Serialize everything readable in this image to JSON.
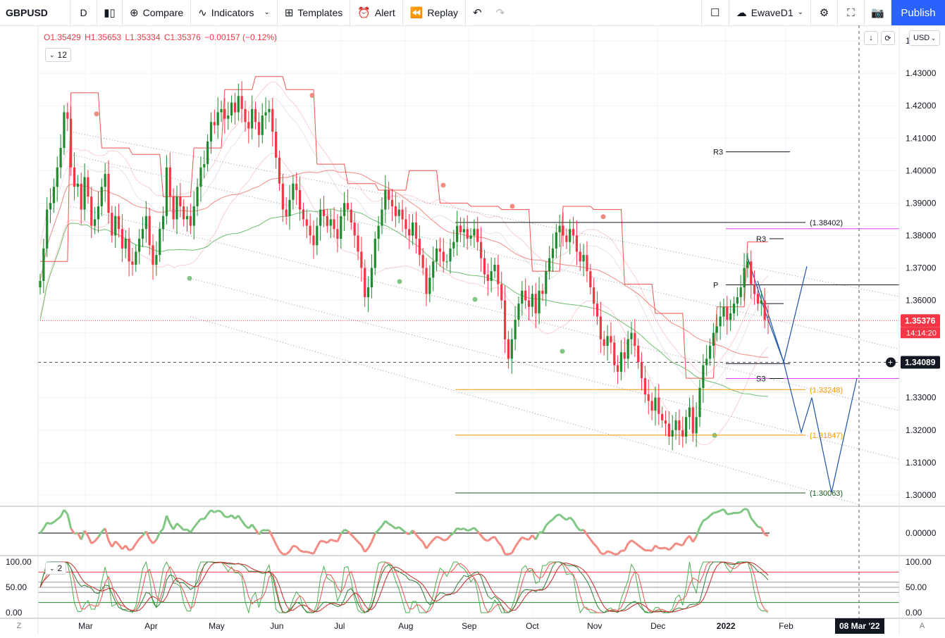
{
  "toolbar": {
    "symbol": "GBPUSD",
    "interval": "D",
    "compare": "Compare",
    "indicators": "Indicators",
    "templates": "Templates",
    "alert": "Alert",
    "replay": "Replay",
    "layout_name": "EwaveD1",
    "publish": "Publish"
  },
  "legend": {
    "open": "O1.35429",
    "high": "H1.35653",
    "low": "L1.35334",
    "close": "C1.35376",
    "change": "−0.00157 (−0.12%)"
  },
  "indicator_count": "12",
  "oscillator_count": "2",
  "currency": "USD",
  "axis_corner_left": "Z",
  "axis_corner_right": "A",
  "colors": {
    "up": "#089981",
    "down": "#f23645",
    "green_candle": "#1f8a2e",
    "accent": "#2962ff",
    "orange": "#ff9800",
    "magenta": "#e040fb"
  },
  "chart_data": {
    "type": "candlestick",
    "symbol": "GBPUSD",
    "timeframe": "D",
    "y_axis_ticks": [
      "1.44000",
      "1.43000",
      "1.42000",
      "1.41000",
      "1.40000",
      "1.39000",
      "1.38000",
      "1.37000",
      "1.36000",
      "1.35000",
      "1.34000",
      "1.33000",
      "1.32000",
      "1.31000",
      "1.30000"
    ],
    "ylim": [
      1.2965,
      1.4448
    ],
    "x_axis_labels": [
      "Mar",
      "Apr",
      "May",
      "Jun",
      "Jul",
      "Aug",
      "Sep",
      "Oct",
      "Nov",
      "Dec",
      "2022",
      "Feb"
    ],
    "crosshair_date_label": "08 Mar '22",
    "last_price_label": "1.35376",
    "countdown_label": "14:14:20",
    "crosshair_price_label": "1.34089",
    "levels": [
      {
        "label": "(1.38402)",
        "value": 1.38402,
        "color": "#131722"
      },
      {
        "label": "(1.33248)",
        "value": 1.33248,
        "color": "#ff9800"
      },
      {
        "label": "(1.31847)",
        "value": 1.31847,
        "color": "#ff9800"
      },
      {
        "label": "(1.30063)",
        "value": 1.30063,
        "color": "#1b5e20"
      }
    ],
    "pivot_labels": [
      {
        "label": "R3",
        "value": 1.4058
      },
      {
        "label": "R3",
        "value": 1.379
      },
      {
        "label": "P",
        "value": 1.3648
      },
      {
        "label": "S3",
        "value": 1.3359
      }
    ],
    "closes": [
      1.366,
      1.376,
      1.388,
      1.39,
      1.395,
      1.401,
      1.407,
      1.418,
      1.416,
      1.401,
      1.395,
      1.396,
      1.388,
      1.398,
      1.392,
      1.383,
      1.385,
      1.389,
      1.395,
      1.399,
      1.387,
      1.38,
      1.386,
      1.382,
      1.376,
      1.379,
      1.372,
      1.371,
      1.375,
      1.379,
      1.382,
      1.386,
      1.377,
      1.371,
      1.374,
      1.382,
      1.386,
      1.401,
      1.392,
      1.385,
      1.392,
      1.389,
      1.385,
      1.386,
      1.383,
      1.389,
      1.395,
      1.401,
      1.402,
      1.409,
      1.415,
      1.414,
      1.418,
      1.419,
      1.416,
      1.417,
      1.421,
      1.418,
      1.423,
      1.419,
      1.415,
      1.413,
      1.419,
      1.415,
      1.411,
      1.417,
      1.418,
      1.419,
      1.412,
      1.404,
      1.396,
      1.388,
      1.386,
      1.391,
      1.396,
      1.394,
      1.388,
      1.385,
      1.383,
      1.38,
      1.377,
      1.383,
      1.388,
      1.386,
      1.383,
      1.385,
      1.382,
      1.379,
      1.386,
      1.39,
      1.388,
      1.384,
      1.38,
      1.375,
      1.37,
      1.361,
      1.364,
      1.37,
      1.379,
      1.383,
      1.388,
      1.394,
      1.391,
      1.389,
      1.386,
      1.388,
      1.385,
      1.382,
      1.38,
      1.384,
      1.379,
      1.374,
      1.37,
      1.362,
      1.367,
      1.372,
      1.376,
      1.375,
      1.372,
      1.372,
      1.376,
      1.378,
      1.383,
      1.381,
      1.382,
      1.379,
      1.38,
      1.382,
      1.378,
      1.373,
      1.368,
      1.366,
      1.369,
      1.371,
      1.365,
      1.36,
      1.348,
      1.342,
      1.348,
      1.354,
      1.359,
      1.363,
      1.36,
      1.358,
      1.362,
      1.356,
      1.363,
      1.362,
      1.369,
      1.373,
      1.376,
      1.381,
      1.383,
      1.38,
      1.378,
      1.382,
      1.38,
      1.375,
      1.372,
      1.374,
      1.369,
      1.364,
      1.359,
      1.355,
      1.348,
      1.346,
      1.349,
      1.347,
      1.34,
      1.338,
      1.344,
      1.342,
      1.348,
      1.35,
      1.346,
      1.341,
      1.336,
      1.331,
      1.329,
      1.326,
      1.33,
      1.325,
      1.323,
      1.322,
      1.318,
      1.32,
      1.323,
      1.32,
      1.318,
      1.324,
      1.327,
      1.319,
      1.324,
      1.333,
      1.34,
      1.342,
      1.346,
      1.35,
      1.352,
      1.355,
      1.358,
      1.354,
      1.356,
      1.359,
      1.361,
      1.364,
      1.37,
      1.372,
      1.365,
      1.362,
      1.359,
      1.36,
      1.354,
      1.3538
    ]
  }
}
